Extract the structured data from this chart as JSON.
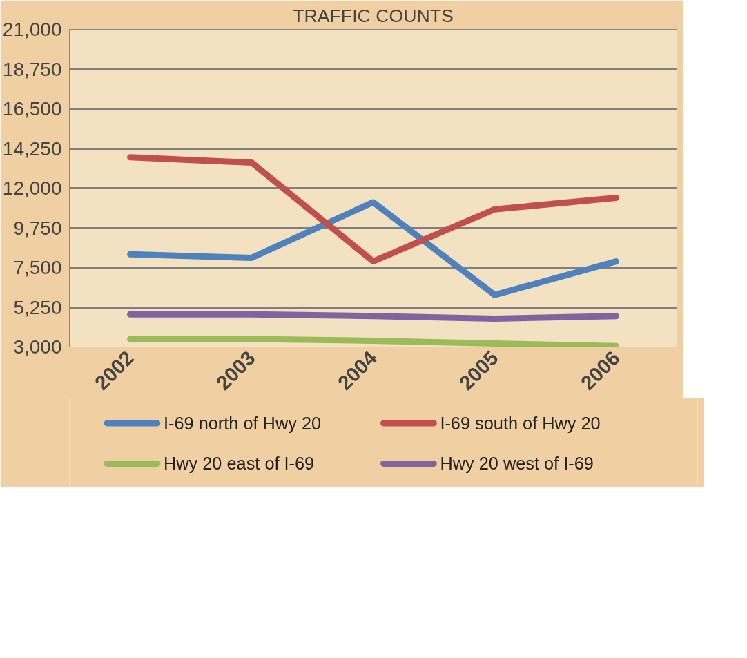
{
  "chart_data": {
    "type": "line",
    "title": "TRAFFIC COUNTS",
    "categories": [
      "2002",
      "2003",
      "2004",
      "2005",
      "2006"
    ],
    "series": [
      {
        "name": "I-69 north of Hwy 20",
        "color": "#4f81bd",
        "values": [
          8250,
          8050,
          11200,
          5950,
          7850
        ]
      },
      {
        "name": "I-69 south of Hwy 20",
        "color": "#c0504d",
        "values": [
          13750,
          13450,
          7850,
          10800,
          11450
        ]
      },
      {
        "name": "Hwy 20 east of I-69",
        "color": "#9bbb59",
        "values": [
          3450,
          3450,
          3350,
          3200,
          3050
        ]
      },
      {
        "name": "Hwy 20 west of I-69",
        "color": "#8064a2",
        "values": [
          4850,
          4850,
          4750,
          4600,
          4750
        ]
      }
    ],
    "ylim": [
      3000,
      21000
    ],
    "yticks": [
      {
        "value": 3000,
        "label": "3,000"
      },
      {
        "value": 5250,
        "label": "5,250"
      },
      {
        "value": 7500,
        "label": "7,500"
      },
      {
        "value": 9750,
        "label": "9,750"
      },
      {
        "value": 12000,
        "label": "12,000"
      },
      {
        "value": 14250,
        "label": "14,250"
      },
      {
        "value": 16500,
        "label": "16,500"
      },
      {
        "value": 18750,
        "label": "18,750"
      },
      {
        "value": 21000,
        "label": "21,000"
      }
    ],
    "grid": "y",
    "legend": "bottom",
    "marker": "none",
    "line_style": "solid"
  }
}
